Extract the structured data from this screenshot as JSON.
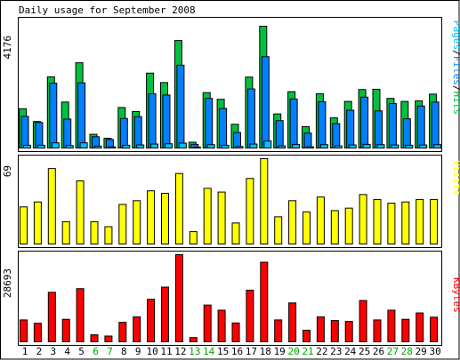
{
  "chart_data": {
    "type": "bar",
    "title": "Daily usage for September 2008",
    "days": [
      1,
      2,
      3,
      4,
      5,
      6,
      7,
      8,
      9,
      10,
      11,
      12,
      13,
      14,
      15,
      16,
      17,
      18,
      19,
      20,
      21,
      22,
      23,
      24,
      25,
      26,
      27,
      28,
      29,
      30
    ],
    "weekend_days": [
      6,
      7,
      13,
      14,
      20,
      21,
      27,
      28
    ],
    "panels": [
      {
        "id": "traffic",
        "max_label": "4176",
        "ylim": [
          0,
          4176
        ],
        "legend": [
          "Pages",
          "/",
          "Files",
          "/",
          "Hits"
        ],
        "series": [
          {
            "name": "Hits",
            "color": "#00c040",
            "values": [
              1290,
              870,
              2340,
              1510,
              2800,
              450,
              320,
              1330,
              1200,
              2460,
              2150,
              3530,
              190,
              1820,
              1600,
              780,
              2330,
              4000,
              1120,
              1850,
              700,
              1780,
              990,
              1530,
              1920,
              1930,
              1630,
              1530,
              1550,
              1770
            ]
          },
          {
            "name": "Files",
            "color": "#0080ff",
            "values": [
              1040,
              840,
              2130,
              950,
              2140,
              370,
              280,
              970,
              1030,
              1780,
              1740,
              2720,
              120,
              1630,
              1300,
              510,
              1940,
              3000,
              900,
              1610,
              490,
              1520,
              800,
              1240,
              1670,
              1220,
              1460,
              960,
              1380,
              1510
            ]
          },
          {
            "name": "Pages",
            "color": "#00c0ff",
            "values": [
              90,
              90,
              170,
              80,
              170,
              60,
              40,
              90,
              100,
              130,
              140,
              160,
              30,
              110,
              90,
              50,
              130,
              230,
              70,
              120,
              40,
              110,
              70,
              100,
              120,
              110,
              100,
              90,
              100,
              110
            ]
          }
        ]
      },
      {
        "id": "visits",
        "max_label": "69",
        "ylim": [
          0,
          69
        ],
        "legend": [
          "Visits"
        ],
        "series": [
          {
            "name": "Visits",
            "color": "#ffff00",
            "values": [
              30,
              34,
              61,
              18,
              51,
              18,
              14,
              32,
              35,
              43,
              41,
              57,
              10,
              45,
              42,
              17,
              53,
              69,
              22,
              35,
              26,
              38,
              27,
              29,
              40,
              36,
              33,
              34,
              36,
              36
            ]
          }
        ]
      },
      {
        "id": "kbytes",
        "max_label": "28693",
        "ylim": [
          0,
          28693
        ],
        "legend": [
          "KBytes"
        ],
        "series": [
          {
            "name": "KBytes",
            "color": "#ff0000",
            "values": [
              7200,
              6100,
              16300,
              7400,
              17500,
              2300,
              1900,
              6400,
              8200,
              14000,
              18000,
              28693,
              1400,
              12100,
              10400,
              6200,
              17000,
              26200,
              7200,
              12800,
              3800,
              8200,
              7000,
              6700,
              13600,
              7200,
              10400,
              7400,
              9500,
              8100
            ]
          }
        ]
      }
    ]
  }
}
